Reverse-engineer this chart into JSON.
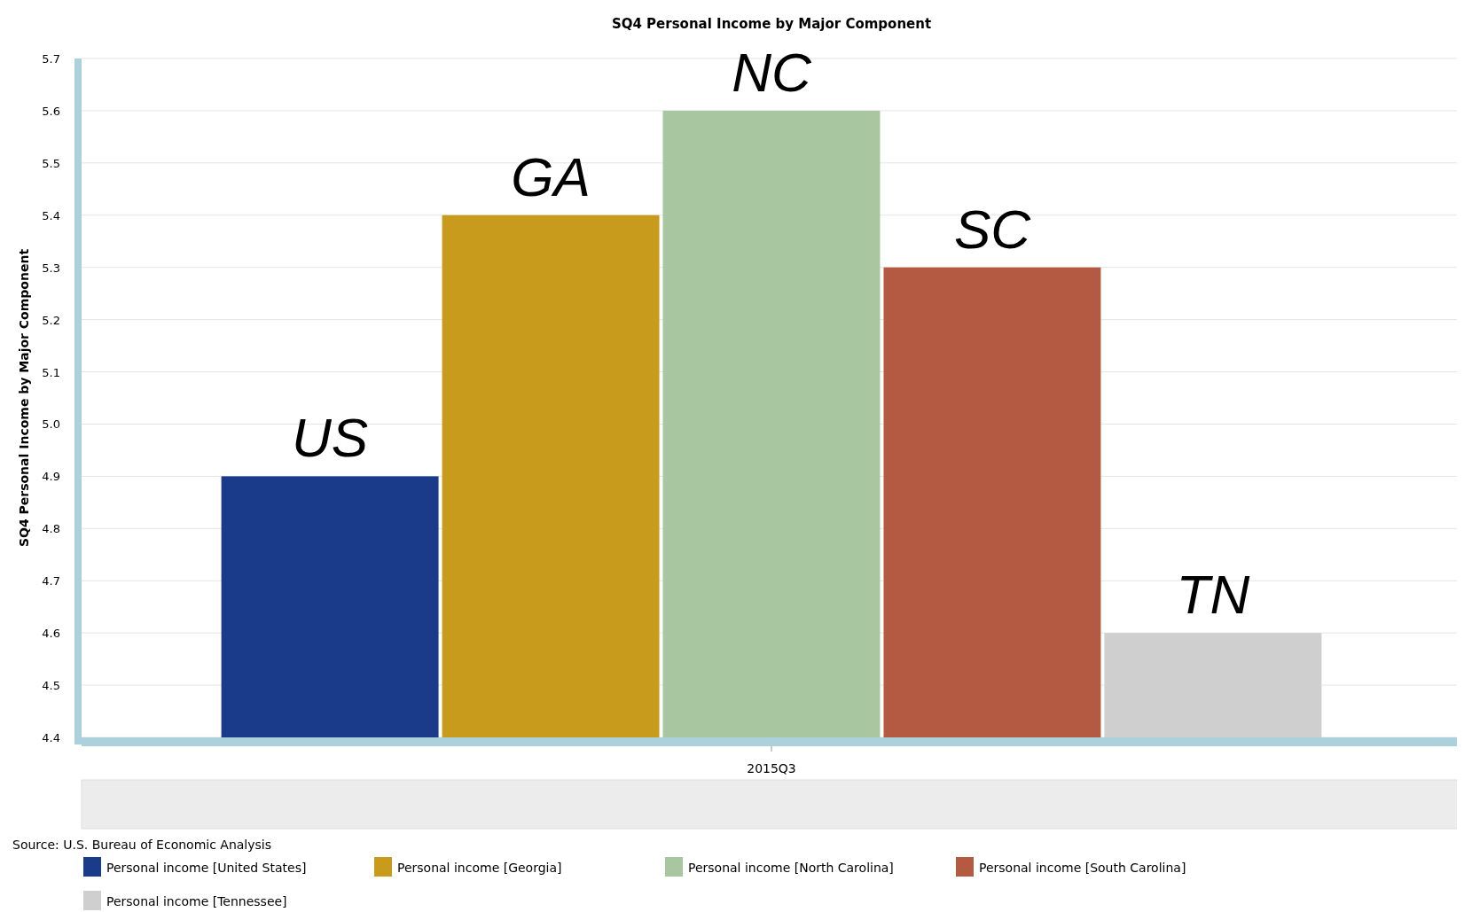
{
  "chart_data": {
    "type": "bar",
    "title": "SQ4 Personal Income by Major Component",
    "ylabel": "SQ4 Personal Income by Major Component",
    "categories": [
      "2015Q3"
    ],
    "series": [
      {
        "name": "Personal income [United States]",
        "color": "#1a3a8a",
        "values": [
          4.9
        ]
      },
      {
        "name": "Personal income [Georgia]",
        "color": "#c99b1c",
        "values": [
          5.4
        ]
      },
      {
        "name": "Personal income [North Carolina]",
        "color": "#a8c69f",
        "values": [
          5.6
        ]
      },
      {
        "name": "Personal income [South Carolina]",
        "color": "#b55a42",
        "values": [
          5.3
        ]
      },
      {
        "name": "Personal income [Tennessee]",
        "color": "#cfcfcf",
        "values": [
          4.6
        ]
      }
    ],
    "ylim": [
      4.4,
      5.7
    ],
    "yticks": [
      {
        "value": 4.4,
        "label": "4.4"
      },
      {
        "value": 4.5,
        "label": "4.5"
      },
      {
        "value": 4.6,
        "label": "4.6"
      },
      {
        "value": 4.7,
        "label": "4.7"
      },
      {
        "value": 4.8,
        "label": "4.8"
      },
      {
        "value": 4.9,
        "label": "4.9"
      },
      {
        "value": 5.0,
        "label": "5.0"
      },
      {
        "value": 5.1,
        "label": "5.1"
      },
      {
        "value": 5.2,
        "label": "5.2"
      },
      {
        "value": 5.3,
        "label": "5.3"
      },
      {
        "value": 5.4,
        "label": "5.4"
      },
      {
        "value": 5.5,
        "label": "5.5"
      },
      {
        "value": 5.6,
        "label": "5.6"
      },
      {
        "value": 5.7,
        "label": "5.7"
      }
    ],
    "grid": "y",
    "legend": "bottom",
    "annotations": [
      "US",
      "GA",
      "NC",
      "SC",
      "TN",
      "Source: U.S. Bureau of Economic Analysis"
    ]
  }
}
